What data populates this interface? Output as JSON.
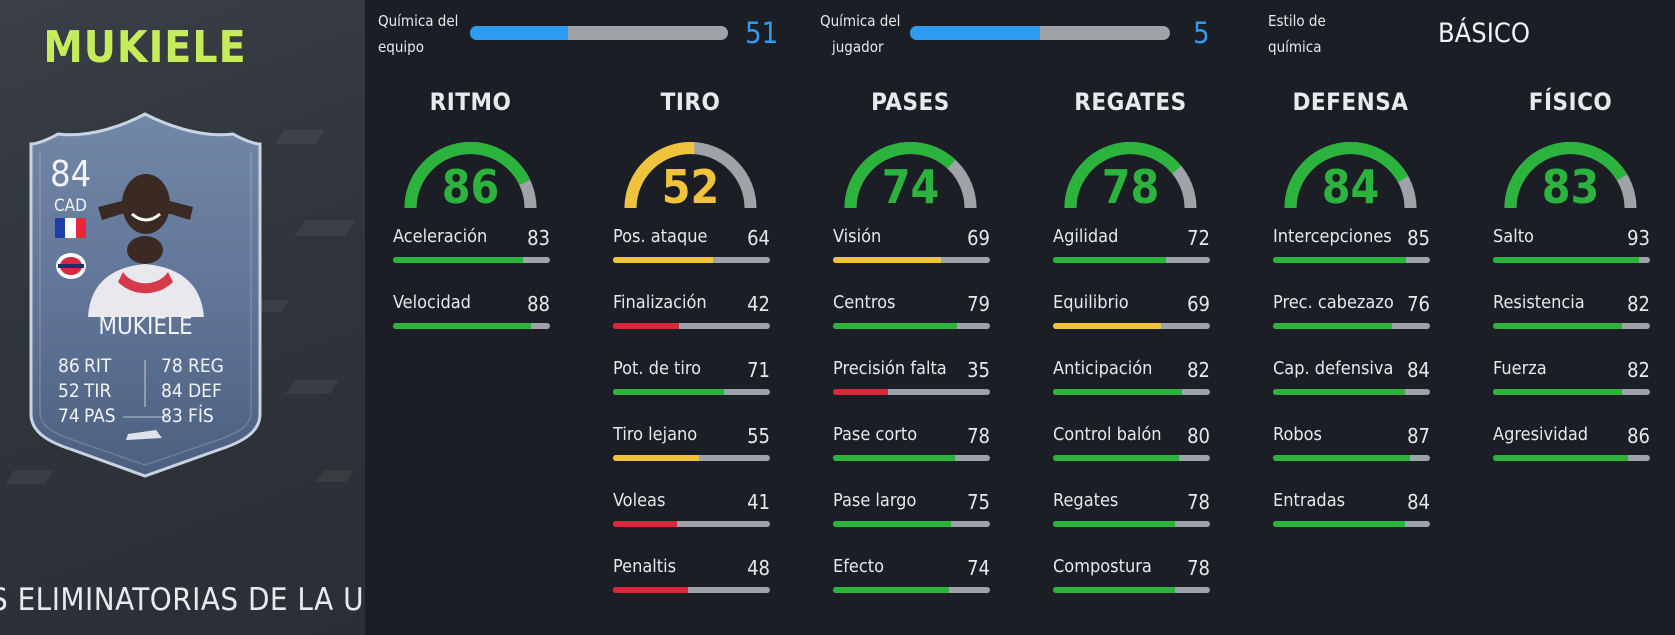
{
  "player": {
    "name": "MUKIELE",
    "card": {
      "rating": "84",
      "position": "CAD",
      "name": "MUKIELE",
      "stats": [
        {
          "value": "86",
          "label": "RIT"
        },
        {
          "value": "52",
          "label": "TIR"
        },
        {
          "value": "74",
          "label": "PAS"
        },
        {
          "value": "78",
          "label": "REG"
        },
        {
          "value": "84",
          "label": "DEF"
        },
        {
          "value": "83",
          "label": "FÍS"
        }
      ]
    },
    "promo": "S ELIMINATORIAS DE LA UCL"
  },
  "chemistry": {
    "team_label_1": "Química del",
    "team_label_2": "equipo",
    "team_value": "51",
    "team_fraction": 0.38,
    "player_label_1": "Química del",
    "player_label_2": "jugador",
    "player_value": "5",
    "player_fraction": 0.5,
    "style_label_1": "Estilo de",
    "style_label_2": "química",
    "style_value": "BÁSICO"
  },
  "colors": {
    "green": "#2bb33d",
    "yellow": "#f0c33c",
    "red": "#d9283b",
    "blue": "#2d9bf0",
    "track": "#9ea3a8"
  },
  "categories": [
    {
      "title": "RITMO",
      "value": "86",
      "attributes": [
        {
          "label": "Aceleración",
          "value": "83"
        },
        {
          "label": "Velocidad",
          "value": "88"
        }
      ]
    },
    {
      "title": "TIRO",
      "value": "52",
      "attributes": [
        {
          "label": "Pos. ataque",
          "value": "64"
        },
        {
          "label": "Finalización",
          "value": "42"
        },
        {
          "label": "Pot. de tiro",
          "value": "71"
        },
        {
          "label": "Tiro lejano",
          "value": "55"
        },
        {
          "label": "Voleas",
          "value": "41"
        },
        {
          "label": "Penaltis",
          "value": "48"
        }
      ]
    },
    {
      "title": "PASES",
      "value": "74",
      "attributes": [
        {
          "label": "Visión",
          "value": "69"
        },
        {
          "label": "Centros",
          "value": "79"
        },
        {
          "label": "Precisión falta",
          "value": "35"
        },
        {
          "label": "Pase corto",
          "value": "78"
        },
        {
          "label": "Pase largo",
          "value": "75"
        },
        {
          "label": "Efecto",
          "value": "74"
        }
      ]
    },
    {
      "title": "REGATES",
      "value": "78",
      "attributes": [
        {
          "label": "Agilidad",
          "value": "72"
        },
        {
          "label": "Equilibrio",
          "value": "69"
        },
        {
          "label": "Anticipación",
          "value": "82"
        },
        {
          "label": "Control balón",
          "value": "80"
        },
        {
          "label": "Regates",
          "value": "78"
        },
        {
          "label": "Compostura",
          "value": "78"
        }
      ]
    },
    {
      "title": "DEFENSA",
      "value": "84",
      "attributes": [
        {
          "label": "Intercepciones",
          "value": "85"
        },
        {
          "label": "Prec. cabezazo",
          "value": "76"
        },
        {
          "label": "Cap. defensiva",
          "value": "84"
        },
        {
          "label": "Robos",
          "value": "87"
        },
        {
          "label": "Entradas",
          "value": "84"
        }
      ]
    },
    {
      "title": "FÍSICO",
      "value": "83",
      "attributes": [
        {
          "label": "Salto",
          "value": "93"
        },
        {
          "label": "Resistencia",
          "value": "82"
        },
        {
          "label": "Fuerza",
          "value": "82"
        },
        {
          "label": "Agresividad",
          "value": "86"
        }
      ]
    }
  ]
}
